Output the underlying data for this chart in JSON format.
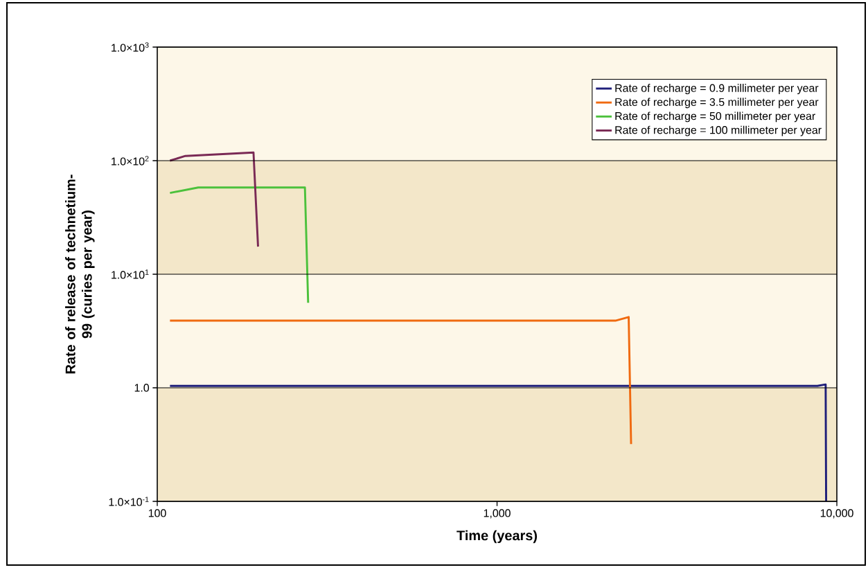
{
  "chart_data": {
    "type": "line",
    "xlabel": "Time (years)",
    "ylabel": "Rate of release of technetium-99 (curies per year)",
    "log": "xy",
    "grid": "y",
    "legend": "top right",
    "line_style": "solid",
    "marker": "none",
    "xlim": [
      100,
      10000
    ],
    "ylim": [
      0.1,
      1000
    ],
    "xticks": [
      100,
      {
        "value": 1000,
        "label": "1,000"
      },
      {
        "value": 10000,
        "label": "10,000"
      }
    ],
    "yticks": [
      {
        "value": 0.1,
        "label": "1.0×10$^{-1}$"
      },
      {
        "value": 1,
        "label": "1.0"
      },
      {
        "value": 10,
        "label": "1.0×10$^{1}$"
      },
      {
        "value": 100,
        "label": "1.0×10$^{2}$"
      },
      {
        "value": 1000,
        "label": "1.0×10$^{3}$"
      }
    ],
    "bands": [
      {
        "axis": "y",
        "from": 0.1,
        "to": 1,
        "color": "#f3e7c9"
      },
      {
        "axis": "y",
        "from": 10,
        "to": 100,
        "color": "#f3e7c9"
      }
    ],
    "series": [
      {
        "name": "Rate of recharge = 0.9 millimeter per year",
        "color": "#1f1f7a",
        "x": [
          109,
          8770,
          9270,
          9300
        ],
        "values": [
          1.04,
          1.04,
          1.07,
          0.1
        ]
      },
      {
        "name": "Rate of recharge = 3.5 millimeter per year",
        "color": "#f06a10",
        "x": [
          109,
          2230,
          2440,
          2480
        ],
        "values": [
          3.9,
          3.9,
          4.2,
          0.32
        ]
      },
      {
        "name": "Rate of recharge = 50 millimeter per year",
        "color": "#4cc13c",
        "x": [
          109,
          132,
          272,
          278
        ],
        "values": [
          52,
          58,
          58,
          5.6
        ]
      },
      {
        "name": "Rate of recharge = 100 millimeter per year",
        "color": "#7a2a55",
        "x": [
          109,
          121,
          192,
          198
        ],
        "values": [
          100,
          110,
          118,
          17.5
        ]
      }
    ]
  }
}
